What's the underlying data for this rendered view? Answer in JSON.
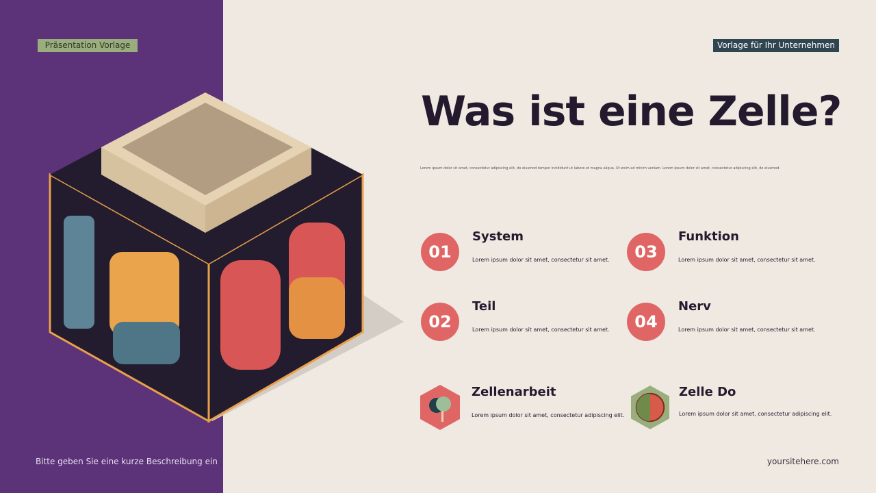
{
  "header": {
    "left_tag": "Präsentation Vorlage",
    "right_tag": "Vorlage für Ihr Unternehmen"
  },
  "title": "Was ist eine Zelle?",
  "intro": "Lorem ipsum dolor sit amet, consectetur adipiscing elit,  do eiusmod tempor incididunt ut labore et magna aliqua. Ut enim ad minim veniam. Lorem ipsum dolor sit amet, consectetur adipiscing elit,  do eiusmod.",
  "items": [
    {
      "num": "01",
      "title": "System",
      "desc": "Lorem ipsum dolor sit amet, consectetur sit amet."
    },
    {
      "num": "03",
      "title": "Funktion",
      "desc": "Lorem ipsum dolor sit amet, consectetur sit amet."
    },
    {
      "num": "02",
      "title": "Teil",
      "desc": "Lorem ipsum dolor sit amet, consectetur sit amet."
    },
    {
      "num": "04",
      "title": "Nerv",
      "desc": "Lorem ipsum dolor sit amet, consectetur sit amet."
    }
  ],
  "features": [
    {
      "icon": "brain-tree-icon",
      "title": "Zellenarbeit",
      "desc": "Lorem ipsum dolor sit amet, consectetur adipiscing elit.",
      "color": "#e06666"
    },
    {
      "icon": "cell-icon",
      "title": "Zelle Do",
      "desc": "Lorem ipsum dolor sit amet, consectetur adipiscing elit.",
      "color": "#9aae7d"
    }
  ],
  "footer": {
    "left": "Bitte geben Sie eine kurze Beschreibung ein",
    "right": "yoursitehere.com"
  },
  "colors": {
    "purple": "#5c3279",
    "background": "#efe9e2",
    "accent": "#e06666"
  }
}
